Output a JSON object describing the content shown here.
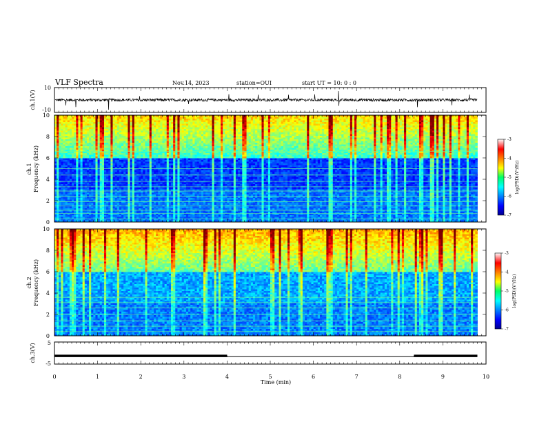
{
  "header": {
    "title": "VLF Spectra",
    "date": "Nov.14, 2023",
    "station": "station=OUI",
    "start": "start  UT =  10: 0  : 0"
  },
  "chart_data": [
    {
      "type": "line",
      "panel": "ch1-waveform",
      "ylabel": "ch.1(V)",
      "ylim": [
        -10,
        10
      ],
      "yticks": [
        "10",
        "-10"
      ],
      "baseline_v": 0,
      "xlim": [
        0,
        10
      ]
    },
    {
      "type": "heatmap",
      "panel": "ch1-spectrogram",
      "ylabel_line1": "ch.1",
      "ylabel_line2": "Frequency (kHz)",
      "ylim": [
        0,
        10
      ],
      "yticks": [
        "0",
        "2",
        "4",
        "6",
        "8",
        "10"
      ],
      "xlim": [
        0,
        9.8
      ],
      "colorbar": {
        "label": "log(PSD)(V²/Hz)",
        "range": [
          -7,
          -3
        ],
        "ticks": [
          "-3",
          "-4",
          "-5",
          "-6",
          "-7"
        ]
      }
    },
    {
      "type": "heatmap",
      "panel": "ch2-spectrogram",
      "ylabel_line1": "ch.2",
      "ylabel_line2": "Frequency (kHz)",
      "ylim": [
        0,
        10
      ],
      "yticks": [
        "0",
        "2",
        "4",
        "6",
        "8",
        "10"
      ],
      "xlim": [
        0,
        9.8
      ],
      "colorbar": {
        "label": "log(PSD)(V²/Hz)",
        "range": [
          -7,
          -3
        ],
        "ticks": [
          "-3",
          "-4",
          "-5",
          "-6",
          "-7"
        ]
      }
    },
    {
      "type": "line",
      "panel": "ch3-status",
      "ylabel": "ch.3(V)",
      "ylim": [
        -5,
        5
      ],
      "yticks": [
        "5",
        "-5"
      ],
      "x": [
        0,
        4,
        4,
        8.33,
        8.33,
        9.8
      ],
      "y": [
        -1.3,
        -1.3,
        -1.6,
        -1.6,
        -1.3,
        -1.3
      ]
    }
  ],
  "xaxis": {
    "label": "Time (min)",
    "xlim": [
      0,
      10
    ],
    "ticks": [
      "0",
      "1",
      "2",
      "3",
      "4",
      "5",
      "6",
      "7",
      "8",
      "9",
      "10"
    ]
  }
}
